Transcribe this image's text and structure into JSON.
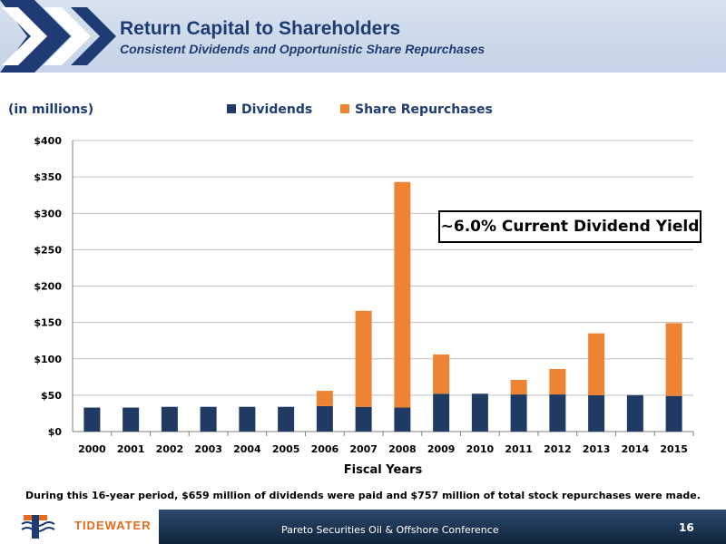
{
  "header": {
    "title": "Return Capital to Shareholders",
    "subtitle": "Consistent Dividends and Opportunistic Share Repurchases"
  },
  "units_label": "(in millions)",
  "callout": "~6.0% Current Dividend Yield",
  "footnote": "During this 16-year period, $659 million of dividends were paid and $757 million of total stock repurchases were made.",
  "footer": {
    "logo_text": "TIDEWATER",
    "conference": "Pareto Securities Oil & Offshore Conference",
    "page_number": "16"
  },
  "colors": {
    "dividends": "#1f3b63",
    "repurchases": "#ee8433",
    "title": "#1f3b73"
  },
  "chart_data": {
    "type": "bar",
    "stacked": true,
    "categories": [
      "2000",
      "2001",
      "2002",
      "2003",
      "2004",
      "2005",
      "2006",
      "2007",
      "2008",
      "2009",
      "2010",
      "2011",
      "2012",
      "2013",
      "2014",
      "2015"
    ],
    "series": [
      {
        "name": "Dividends",
        "color": "#1f3b63",
        "values": [
          33,
          33,
          34,
          34,
          34,
          34,
          35,
          34,
          33,
          52,
          52,
          51,
          51,
          50,
          50,
          49
        ]
      },
      {
        "name": "Share Repurchases",
        "color": "#ee8433",
        "values": [
          0,
          0,
          0,
          0,
          0,
          0,
          21,
          132,
          310,
          54,
          0,
          20,
          35,
          85,
          0,
          100
        ]
      }
    ],
    "xlabel": "Fiscal Years",
    "ylabel": "",
    "ylim": [
      0,
      400
    ],
    "yticks": [
      0,
      50,
      100,
      150,
      200,
      250,
      300,
      350,
      400
    ],
    "ytick_labels": [
      "$0",
      "$50",
      "$100",
      "$150",
      "$200",
      "$250",
      "$300",
      "$350",
      "$400"
    ],
    "grid": true,
    "legend": "top-center"
  }
}
